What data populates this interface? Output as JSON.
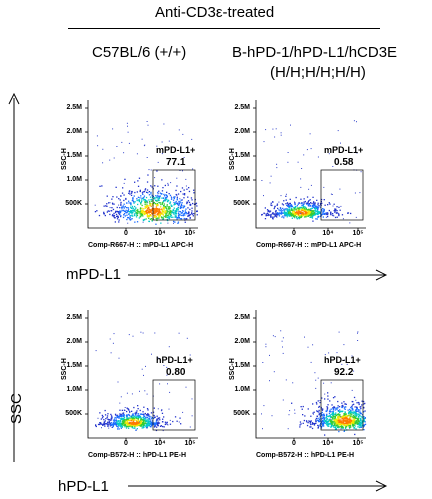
{
  "header": {
    "treatment": "Anti-CD3ε-treated",
    "col1": "C57BL/6 (+/+)",
    "col2_line1": "B-hPD-1/hPD-L1/hCD3E",
    "col2_line2": "(H/H;H/H;H/H)"
  },
  "axes_labels": {
    "ssc": "SSC",
    "mpdl1": "mPD-L1",
    "hpdl1": "hPD-L1"
  },
  "panels": [
    {
      "y_axis": "SSC-H",
      "y_ticks": [
        "2.5M",
        "2.0M",
        "1.5M",
        "1.0M",
        "500K"
      ],
      "x_ticks": [
        "0",
        "10⁴",
        "10⁵"
      ],
      "x_title": "Comp-R667-H :: mPD-L1 APC-H",
      "gate": "mPD-L1+",
      "value": "77.1"
    },
    {
      "y_axis": "SSC-H",
      "y_ticks": [
        "2.5M",
        "2.0M",
        "1.5M",
        "1.0M",
        "500K"
      ],
      "x_ticks": [
        "0",
        "10⁴",
        "10⁵"
      ],
      "x_title": "Comp-R667-H :: mPD-L1 APC-H",
      "gate": "mPD-L1+",
      "value": "0.58"
    },
    {
      "y_axis": "SSC-H",
      "y_ticks": [
        "2.5M",
        "2.0M",
        "1.5M",
        "1.0M",
        "500K"
      ],
      "x_ticks": [
        "0",
        "10⁴",
        "10⁵"
      ],
      "x_title": "Comp-B572-H :: hPD-L1 PE-H",
      "gate": "hPD-L1+",
      "value": "0.80"
    },
    {
      "y_axis": "SSC-H",
      "y_ticks": [
        "2.5M",
        "2.0M",
        "1.5M",
        "1.0M",
        "500K"
      ],
      "x_ticks": [
        "0",
        "10⁴",
        "10⁵"
      ],
      "x_title": "Comp-B572-H :: hPD-L1 PE-H",
      "gate": "hPD-L1+",
      "value": "92.2"
    }
  ]
}
